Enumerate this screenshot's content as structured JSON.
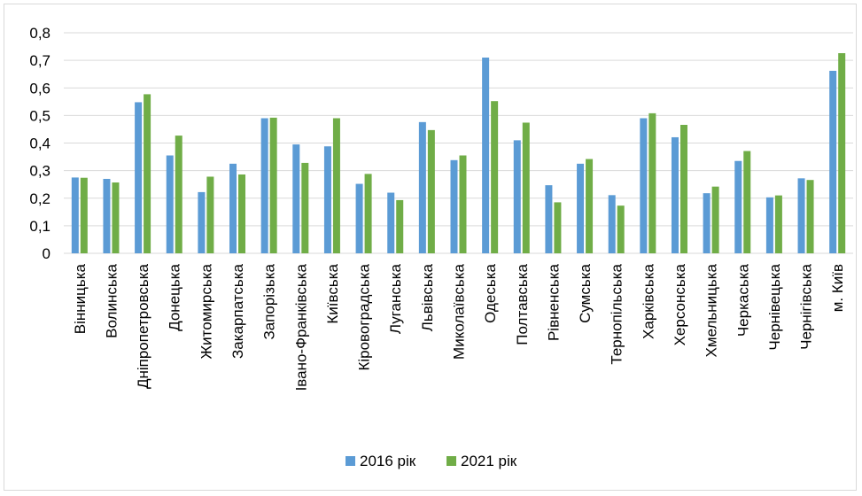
{
  "chart_data": {
    "type": "bar",
    "title": "",
    "xlabel": "",
    "ylabel": "",
    "ylim": [
      0,
      0.8
    ],
    "yticks": [
      "0",
      "0,1",
      "0,2",
      "0,3",
      "0,4",
      "0,5",
      "0,6",
      "0,7",
      "0,8"
    ],
    "grid": true,
    "legend_position": "bottom",
    "categories": [
      "Вінницька",
      "Волинська",
      "Дніпропетровська",
      "Донецька",
      "Житомирська",
      "Закарпатська",
      "Запорізька",
      "Івано-Франківська",
      "Київська",
      "Кіровоградська",
      "Луганська",
      "Львівська",
      "Миколаївська",
      "Одеська",
      "Полтавська",
      "Рівненська",
      "Сумська",
      "Тернопільська",
      "Харківська",
      "Херсонська",
      "Хмельницька",
      "Черкаська",
      "Чернівецька",
      "Чернігівська",
      "м. Київ"
    ],
    "series": [
      {
        "name": "2016 рік",
        "color": "#5B9BD5",
        "values": [
          0.275,
          0.27,
          0.548,
          0.355,
          0.222,
          0.325,
          0.49,
          0.395,
          0.388,
          0.252,
          0.22,
          0.476,
          0.338,
          0.71,
          0.41,
          0.247,
          0.325,
          0.211,
          0.49,
          0.421,
          0.218,
          0.335,
          0.203,
          0.272,
          0.662
        ]
      },
      {
        "name": "2021 рік",
        "color": "#70AD47",
        "values": [
          0.274,
          0.257,
          0.577,
          0.427,
          0.278,
          0.286,
          0.492,
          0.328,
          0.49,
          0.288,
          0.193,
          0.447,
          0.355,
          0.552,
          0.474,
          0.185,
          0.342,
          0.173,
          0.508,
          0.466,
          0.242,
          0.371,
          0.21,
          0.266,
          0.726
        ]
      }
    ]
  }
}
